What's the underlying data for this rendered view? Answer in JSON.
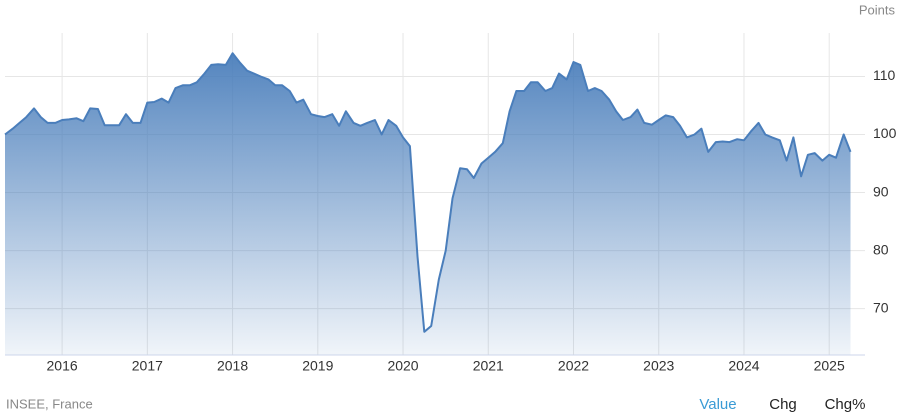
{
  "chart_data": {
    "type": "area",
    "y_label": "Points",
    "x": [
      2015.33,
      2015.42,
      2015.5,
      2015.58,
      2015.67,
      2015.75,
      2015.83,
      2015.92,
      2016,
      2016.08,
      2016.17,
      2016.25,
      2016.33,
      2016.42,
      2016.5,
      2016.58,
      2016.67,
      2016.75,
      2016.83,
      2016.92,
      2017,
      2017.08,
      2017.17,
      2017.25,
      2017.33,
      2017.42,
      2017.5,
      2017.58,
      2017.67,
      2017.75,
      2017.83,
      2017.92,
      2018,
      2018.08,
      2018.17,
      2018.25,
      2018.33,
      2018.42,
      2018.5,
      2018.58,
      2018.67,
      2018.75,
      2018.83,
      2018.92,
      2019,
      2019.08,
      2019.17,
      2019.25,
      2019.33,
      2019.42,
      2019.5,
      2019.58,
      2019.67,
      2019.75,
      2019.83,
      2019.92,
      2020,
      2020.08,
      2020.17,
      2020.25,
      2020.33,
      2020.42,
      2020.5,
      2020.58,
      2020.67,
      2020.75,
      2020.83,
      2020.92,
      2021,
      2021.08,
      2021.17,
      2021.25,
      2021.33,
      2021.42,
      2021.5,
      2021.58,
      2021.67,
      2021.75,
      2021.83,
      2021.92,
      2022,
      2022.08,
      2022.17,
      2022.25,
      2022.33,
      2022.42,
      2022.5,
      2022.58,
      2022.67,
      2022.75,
      2022.83,
      2022.92,
      2023,
      2023.08,
      2023.17,
      2023.25,
      2023.33,
      2023.42,
      2023.5,
      2023.58,
      2023.67,
      2023.75,
      2023.83,
      2023.92,
      2024,
      2024.08,
      2024.17,
      2024.25,
      2024.33,
      2024.42,
      2024.5,
      2024.58,
      2024.67,
      2024.75,
      2024.83,
      2024.92,
      2025,
      2025.08,
      2025.17,
      2025.25
    ],
    "series": [
      {
        "color": "#4a7ebb",
        "values": [
          100,
          101,
          102,
          103,
          104.5,
          103,
          102,
          102,
          102.5,
          102.6,
          102.8,
          102.3,
          104.5,
          104.4,
          101.6,
          101.6,
          101.6,
          103.5,
          102,
          102,
          105.5,
          105.6,
          106.2,
          105.5,
          108,
          108.5,
          108.5,
          109,
          110.5,
          112,
          112.1,
          112,
          114,
          112.5,
          111,
          110.5,
          110,
          109.5,
          108.5,
          108.5,
          107.5,
          105.5,
          106,
          103.5,
          103.2,
          103,
          103.5,
          101.5,
          104,
          102,
          101.5,
          102,
          102.5,
          100,
          102.5,
          101.5,
          99.5,
          98,
          79,
          66,
          67,
          75,
          80,
          89,
          94.2,
          94,
          92.5,
          95,
          96,
          97,
          98.5,
          104,
          107.5,
          107.5,
          109,
          109,
          107.5,
          108,
          110.5,
          109.5,
          112.5,
          112,
          107.5,
          108,
          107.5,
          106,
          104,
          102.5,
          103,
          104.3,
          102,
          101.7,
          102.5,
          103.3,
          103,
          101.5,
          99.5,
          100,
          101,
          97,
          98.7,
          98.8,
          98.7,
          99.2,
          99,
          100.5,
          102,
          100,
          99.5,
          99,
          95.5,
          99.5,
          92.8,
          96.5,
          96.8,
          95.5,
          96.5,
          96,
          100,
          97
        ]
      }
    ],
    "xlim": [
      2015.33,
      2025.42
    ],
    "ylim": [
      62,
      117.5
    ],
    "xticks": [
      2016,
      2017,
      2018,
      2019,
      2020,
      2021,
      2022,
      2023,
      2024,
      2025
    ],
    "yticks": [
      70,
      80,
      90,
      100,
      110
    ],
    "grid": true
  },
  "source": "INSEE, France",
  "tabs": [
    "Value",
    "Chg",
    "Chg%"
  ],
  "active_tab": 0
}
